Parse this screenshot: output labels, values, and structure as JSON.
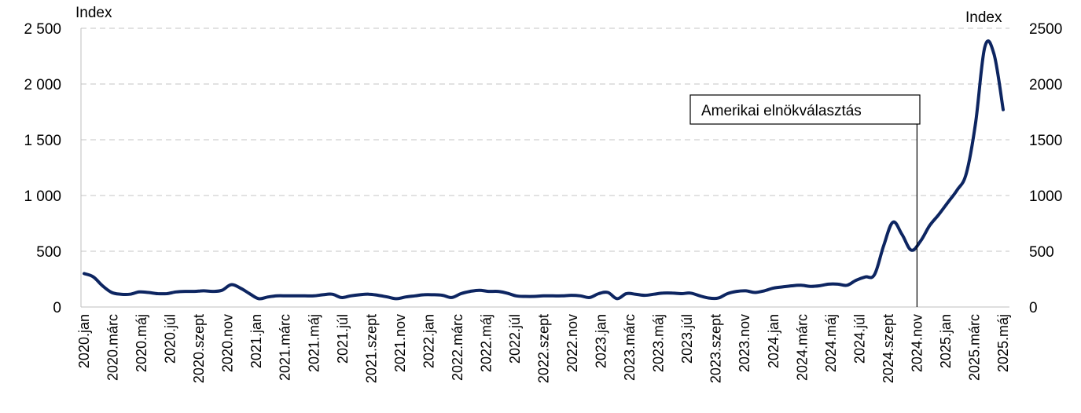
{
  "chart_data": {
    "type": "line",
    "left_axis_unit": "Index",
    "right_axis_unit": "Index",
    "ylim": [
      0,
      2500
    ],
    "left_ticks": [
      "0",
      "500",
      "1 000",
      "1 500",
      "2 000",
      "2 500"
    ],
    "right_ticks": [
      "0",
      "500",
      "1000",
      "1500",
      "2000",
      "2500"
    ],
    "grid": "horizontal-dashed",
    "x_tick_labels": [
      "2020.jan",
      "2020.márc",
      "2020.máj",
      "2020.júl",
      "2020.szept",
      "2020.nov",
      "2021.jan",
      "2021.márc",
      "2021.máj",
      "2021.júl",
      "2021.szept",
      "2021.nov",
      "2022.jan",
      "2022.márc",
      "2022.máj",
      "2022.júl",
      "2022.szept",
      "2022.nov",
      "2023.jan",
      "2023.márc",
      "2023.máj",
      "2023.júl",
      "2023.szept",
      "2023.nov",
      "2024.jan",
      "2024.márc",
      "2024.máj",
      "2024.júl",
      "2024.szept",
      "2024.nov",
      "2025.jan",
      "2025.márc",
      "2025.máj"
    ],
    "series": [
      {
        "color": "#0d2561",
        "values": [
          300,
          270,
          190,
          130,
          115,
          115,
          135,
          130,
          120,
          120,
          135,
          140,
          140,
          145,
          140,
          150,
          200,
          170,
          120,
          75,
          90,
          100,
          100,
          100,
          100,
          100,
          110,
          115,
          85,
          100,
          110,
          115,
          105,
          90,
          75,
          90,
          100,
          110,
          110,
          105,
          85,
          120,
          140,
          150,
          140,
          140,
          125,
          100,
          95,
          95,
          100,
          100,
          100,
          105,
          100,
          85,
          120,
          130,
          75,
          120,
          115,
          105,
          115,
          125,
          125,
          120,
          125,
          100,
          80,
          80,
          120,
          140,
          145,
          130,
          145,
          170,
          180,
          190,
          195,
          185,
          190,
          205,
          205,
          195,
          240,
          270,
          290,
          550,
          760,
          650,
          510,
          590,
          730,
          830,
          940,
          1050,
          1200,
          1650,
          2330,
          2270,
          1770
        ]
      }
    ],
    "annotations": [
      {
        "text": "Amerikai elnökválasztás",
        "x_label": "2024.nov"
      }
    ]
  }
}
